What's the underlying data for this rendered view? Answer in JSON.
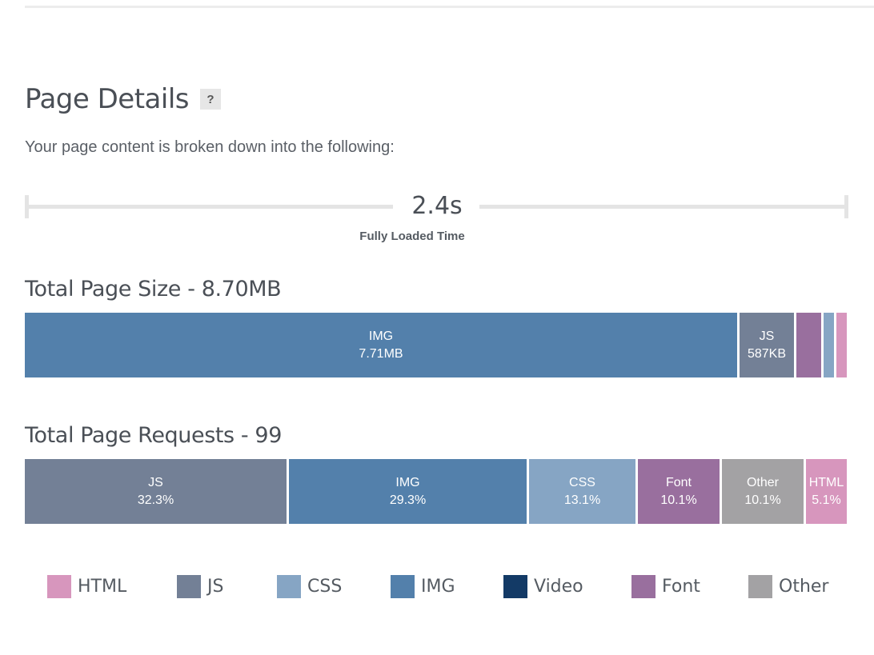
{
  "header": {
    "title": "Page Details",
    "help_label": "?"
  },
  "description": "Your page content is broken down into the following:",
  "timeline": {
    "value": "2.4s",
    "label": "Fully Loaded Time"
  },
  "page_size": {
    "title": "Total Page Size - 8.70MB",
    "segments": [
      {
        "name": "IMG",
        "value": "7.71MB",
        "share": 0.8766,
        "color": "#5380ab"
      },
      {
        "name": "JS",
        "value": "587KB",
        "share": 0.0668,
        "color": "#738096"
      },
      {
        "name": "",
        "value": "",
        "share": 0.0309,
        "color": "#996f9e"
      },
      {
        "name": "",
        "value": "",
        "share": 0.0128,
        "color": "#86a5c4"
      },
      {
        "name": "",
        "value": "",
        "share": 0.0069,
        "color": "#d796bd"
      }
    ]
  },
  "page_requests": {
    "title": "Total Page Requests - 99",
    "segments": [
      {
        "name": "JS",
        "value": "32.3%",
        "share": 0.323,
        "color": "#738096"
      },
      {
        "name": "IMG",
        "value": "29.3%",
        "share": 0.293,
        "color": "#5380ab"
      },
      {
        "name": "CSS",
        "value": "13.1%",
        "share": 0.131,
        "color": "#86a5c4"
      },
      {
        "name": "Font",
        "value": "10.1%",
        "share": 0.101,
        "color": "#996f9e"
      },
      {
        "name": "Other",
        "value": "10.1%",
        "share": 0.101,
        "color": "#a3a2a4"
      },
      {
        "name": "HTML",
        "value": "5.1%",
        "share": 0.051,
        "color": "#d796bd"
      }
    ]
  },
  "legend": [
    {
      "label": "HTML",
      "color": "#d796bd"
    },
    {
      "label": "JS",
      "color": "#738096"
    },
    {
      "label": "CSS",
      "color": "#86a5c4"
    },
    {
      "label": "IMG",
      "color": "#5380ab"
    },
    {
      "label": "Video",
      "color": "#133a66"
    },
    {
      "label": "Font",
      "color": "#996f9e"
    },
    {
      "label": "Other",
      "color": "#a3a2a4"
    }
  ]
}
